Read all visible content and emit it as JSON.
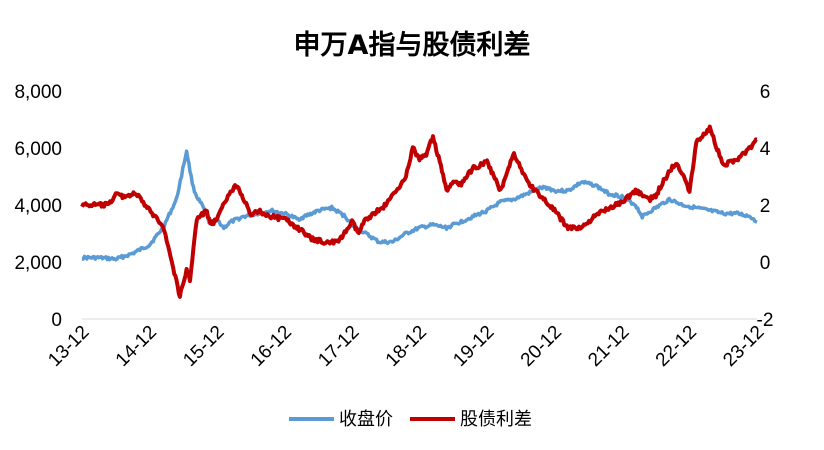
{
  "chart_data": {
    "type": "line",
    "title": "申万A指与股债利差",
    "x_tick_labels": [
      "13-12",
      "14-12",
      "15-12",
      "16-12",
      "17-12",
      "18-12",
      "19-12",
      "20-12",
      "21-12",
      "22-12",
      "23-12"
    ],
    "y_left": {
      "ylim": [
        0,
        8000
      ],
      "ticks": [
        0,
        2000,
        4000,
        6000,
        8000
      ],
      "tick_labels": [
        "0",
        "2,000",
        "4,000",
        "6,000",
        "8,000"
      ]
    },
    "y_right": {
      "ylim": [
        -2,
        6
      ],
      "ticks": [
        -2,
        0,
        2,
        4,
        6
      ],
      "tick_labels": [
        "-2",
        "0",
        "2",
        "4",
        "6"
      ]
    },
    "grid": false,
    "legend_position": "bottom",
    "series": [
      {
        "name": "收盘价",
        "axis": "left",
        "color": "#5B9BD5",
        "x": [
          0,
          0.25,
          0.5,
          0.75,
          1.0,
          1.2,
          1.4,
          1.55,
          1.6,
          1.65,
          1.7,
          1.8,
          1.9,
          2.0,
          2.1,
          2.2,
          2.4,
          2.6,
          2.8,
          3.0,
          3.2,
          3.4,
          3.5,
          3.7,
          3.9,
          4.0,
          4.2,
          4.4,
          4.6,
          4.8,
          5.0,
          5.2,
          5.4,
          5.6,
          5.8,
          6.0,
          6.2,
          6.4,
          6.6,
          6.8,
          6.9,
          7.0,
          7.2,
          7.4,
          7.6,
          7.8,
          8.0,
          8.2,
          8.3,
          8.5,
          8.7,
          8.9,
          9.1,
          9.3,
          9.5,
          9.7,
          9.9,
          10.0
        ],
        "y": [
          2150,
          2150,
          2100,
          2300,
          2600,
          3200,
          4200,
          5900,
          5200,
          4600,
          4300,
          3900,
          3300,
          3500,
          3200,
          3400,
          3600,
          3700,
          3800,
          3700,
          3500,
          3700,
          3800,
          3900,
          3600,
          3300,
          3000,
          2700,
          2700,
          3000,
          3200,
          3300,
          3200,
          3400,
          3600,
          3800,
          4100,
          4200,
          4400,
          4600,
          4600,
          4500,
          4500,
          4800,
          4700,
          4400,
          4300,
          4000,
          3600,
          3900,
          4200,
          4000,
          3900,
          3800,
          3700,
          3700,
          3600,
          3400
        ]
      },
      {
        "name": "股债利差",
        "axis": "right",
        "color": "#C00000",
        "x": [
          0,
          0.2,
          0.4,
          0.5,
          0.6,
          0.8,
          1.0,
          1.2,
          1.35,
          1.45,
          1.55,
          1.6,
          1.7,
          1.85,
          1.9,
          2.0,
          2.2,
          2.3,
          2.4,
          2.5,
          2.6,
          2.8,
          3.0,
          3.2,
          3.4,
          3.6,
          3.8,
          4.0,
          4.1,
          4.2,
          4.5,
          4.8,
          4.9,
          5.0,
          5.1,
          5.2,
          5.3,
          5.4,
          5.5,
          5.6,
          5.8,
          6.0,
          6.1,
          6.2,
          6.3,
          6.4,
          6.6,
          6.8,
          7.0,
          7.2,
          7.4,
          7.6,
          7.8,
          8.0,
          8.2,
          8.4,
          8.5,
          8.6,
          8.8,
          8.9,
          9.0,
          9.1,
          9.3,
          9.5,
          9.7,
          9.9,
          10.0
        ],
        "y": [
          2.0,
          2.0,
          2.0,
          2.4,
          2.3,
          2.4,
          1.8,
          1.3,
          -0.2,
          -1.2,
          -0.3,
          -0.6,
          1.5,
          1.8,
          1.3,
          1.5,
          2.5,
          2.7,
          2.2,
          1.6,
          1.8,
          1.6,
          1.5,
          1.2,
          0.8,
          0.7,
          0.7,
          1.4,
          1.0,
          1.5,
          2.0,
          3.0,
          4.0,
          3.6,
          3.8,
          4.4,
          3.5,
          2.5,
          2.8,
          2.7,
          3.3,
          3.5,
          3.0,
          2.5,
          3.2,
          3.8,
          2.8,
          2.3,
          1.8,
          1.2,
          1.2,
          1.6,
          1.9,
          2.1,
          2.5,
          2.2,
          2.3,
          2.8,
          3.5,
          3.1,
          2.5,
          4.2,
          4.7,
          3.4,
          3.6,
          4.0,
          4.3
        ]
      }
    ]
  }
}
